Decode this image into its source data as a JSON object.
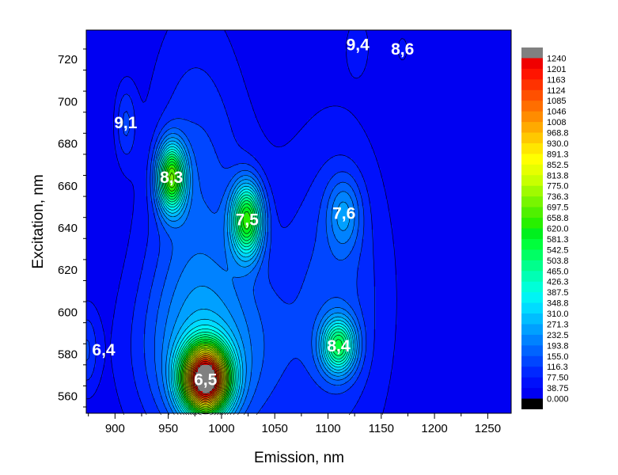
{
  "chart_data": {
    "type": "heatmap",
    "subtype": "contour",
    "xlabel": "Emission, nm",
    "ylabel": "Excitation, nm",
    "xlim": [
      873,
      1272
    ],
    "ylim": [
      552,
      734
    ],
    "x_ticks": [
      "900",
      "950",
      "1000",
      "1050",
      "1100",
      "1150",
      "1200",
      "1250"
    ],
    "y_ticks": [
      "560",
      "580",
      "600",
      "620",
      "640",
      "660",
      "680",
      "700",
      "720"
    ],
    "colorbar_levels": [
      "0.000",
      "38.75",
      "77.50",
      "116.3",
      "155.0",
      "193.8",
      "232.5",
      "271.3",
      "310.0",
      "348.8",
      "387.5",
      "426.3",
      "465.0",
      "503.8",
      "542.5",
      "581.3",
      "620.0",
      "658.8",
      "697.5",
      "736.3",
      "775.0",
      "813.8",
      "852.5",
      "891.3",
      "930.0",
      "968.8",
      "1008",
      "1046",
      "1085",
      "1124",
      "1163",
      "1201",
      "1240"
    ],
    "colorbar_colors": [
      "#0000f2",
      "#0010fb",
      "#0028ff",
      "#0046ff",
      "#0064ff",
      "#0082ff",
      "#00a0ff",
      "#00beff",
      "#00dcff",
      "#00f4f4",
      "#00ffd8",
      "#00ffb4",
      "#00ff8c",
      "#00ff64",
      "#00ff3c",
      "#00f01e",
      "#28f000",
      "#50f000",
      "#78f500",
      "#a0fa00",
      "#c8ff00",
      "#e6ff00",
      "#ffff00",
      "#ffe600",
      "#ffc800",
      "#ffaa00",
      "#ff8c00",
      "#ff6e00",
      "#ff5000",
      "#ff3200",
      "#ff1400",
      "#f00000"
    ],
    "colorbar_under": "#000000",
    "colorbar_over": "#808080",
    "peaks": [
      {
        "label": "6,5",
        "emission": 985,
        "excitation": 568,
        "intensity": 1230,
        "sx": 15,
        "sy": 11
      },
      {
        "label": "8,3",
        "emission": 953,
        "excitation": 664,
        "intensity": 600,
        "sx": 9,
        "sy": 11
      },
      {
        "label": "7,5",
        "emission": 1024,
        "excitation": 644,
        "intensity": 560,
        "sx": 10,
        "sy": 12
      },
      {
        "label": "8,4",
        "emission": 1110,
        "excitation": 584,
        "intensity": 440,
        "sx": 11,
        "sy": 9
      },
      {
        "label": "7,6",
        "emission": 1115,
        "excitation": 647,
        "intensity": 150,
        "sx": 11,
        "sy": 12
      },
      {
        "label": "9,1",
        "emission": 910,
        "excitation": 690,
        "intensity": 110,
        "sx": 7,
        "sy": 13
      },
      {
        "label": "6,4",
        "emission": 873,
        "excitation": 582,
        "intensity": 110,
        "sx": 8,
        "sy": 14
      },
      {
        "label": "9,4",
        "emission": 1128,
        "excitation": 727,
        "intensity": 60,
        "sx": 8,
        "sy": 10
      },
      {
        "label": "8,6",
        "emission": 1170,
        "excitation": 725,
        "intensity": 60,
        "sx": 4,
        "sy": 5
      }
    ],
    "background": [
      {
        "emission": 985,
        "excitation": 580,
        "intensity": 180,
        "sx": 45,
        "sy": 30
      },
      {
        "emission": 975,
        "excitation": 655,
        "intensity": 120,
        "sx": 32,
        "sy": 60
      },
      {
        "emission": 1110,
        "excitation": 612,
        "intensity": 90,
        "sx": 30,
        "sy": 55
      },
      {
        "emission": 1050,
        "excitation": 600,
        "intensity": 60,
        "sx": 80,
        "sy": 60
      }
    ]
  }
}
